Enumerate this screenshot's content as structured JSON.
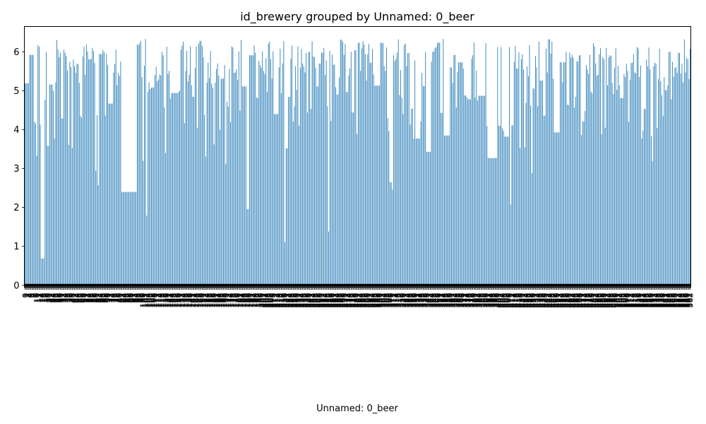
{
  "chart_data": {
    "type": "bar",
    "title": "id_brewery grouped by Unnamed: 0_beer",
    "xlabel": "Unnamed: 0_beer",
    "ylabel": "",
    "ylim": [
      -0.05,
      6.65
    ],
    "yticks": [
      0,
      1,
      2,
      3,
      4,
      5,
      6
    ],
    "bar_color": "#1f77b4",
    "x_tick_pattern": "one rotated label per bar, overlapping; labels are dense and illegible",
    "values": [
      5.19,
      5.19,
      5.19,
      5.19,
      5.92,
      5.92,
      5.92,
      5.92,
      4.2,
      4.16,
      3.33,
      6.17,
      6.13,
      4.13,
      0.69,
      0.69,
      0.69,
      4.76,
      5.99,
      3.58,
      3.58,
      5.16,
      5.16,
      5.16,
      5.0,
      3.77,
      5.22,
      6.3,
      6.06,
      5.86,
      5.98,
      4.29,
      4.29,
      6.05,
      5.98,
      5.89,
      5.52,
      3.61,
      5.74,
      5.61,
      3.53,
      5.8,
      5.63,
      5.46,
      5.69,
      5.69,
      5.2,
      4.35,
      4.31,
      5.88,
      6.13,
      5.41,
      6.19,
      6.01,
      5.81,
      5.81,
      5.81,
      6.1,
      6.02,
      5.71,
      2.94,
      4.37,
      2.57,
      5.94,
      5.94,
      5.94,
      6.05,
      5.99,
      4.36,
      5.94,
      5.66,
      4.67,
      4.67,
      4.67,
      4.67,
      5.47,
      5.69,
      6.05,
      5.14,
      5.45,
      5.38,
      5.75,
      2.4,
      2.4,
      2.4,
      2.4,
      2.4,
      2.4,
      2.4,
      2.4,
      2.4,
      2.4,
      2.4,
      2.4,
      2.4,
      6.19,
      6.17,
      6.22,
      6.28,
      5.35,
      3.2,
      5.64,
      6.33,
      1.79,
      4.97,
      5.22,
      5.04,
      5.08,
      5.08,
      5.09,
      5.4,
      5.61,
      5.24,
      5.29,
      5.42,
      5.39,
      6.0,
      5.91,
      4.57,
      3.4,
      6.13,
      5.43,
      5.51,
      4.8,
      4.94,
      4.94,
      4.94,
      4.94,
      4.94,
      4.94,
      4.96,
      5.0,
      6.05,
      6.16,
      6.26,
      4.17,
      5.51,
      6.03,
      5.24,
      5.41,
      6.14,
      5.14,
      4.85,
      4.84,
      5.58,
      6.14,
      4.05,
      6.21,
      6.28,
      6.28,
      6.15,
      5.86,
      4.38,
      3.31,
      5.21,
      5.72,
      5.32,
      6.02,
      5.18,
      5.08,
      3.62,
      5.21,
      5.56,
      5.7,
      5.39,
      4.0,
      5.31,
      5.31,
      5.31,
      5.66,
      3.12,
      4.72,
      4.59,
      5.56,
      4.19,
      6.14,
      6.11,
      5.46,
      5.47,
      5.55,
      5.27,
      6.01,
      4.49,
      6.3,
      5.11,
      5.11,
      5.11,
      5.11,
      1.96,
      1.96,
      5.91,
      5.91,
      5.91,
      5.91,
      6.16,
      5.97,
      4.83,
      4.81,
      5.77,
      5.66,
      5.59,
      6.01,
      5.51,
      5.43,
      5.84,
      4.97,
      6.21,
      6.26,
      5.81,
      5.31,
      6.01,
      4.4,
      4.4,
      4.4,
      4.4,
      5.6,
      6.08,
      4.94,
      5.7,
      6.28,
      1.11,
      3.52,
      3.52,
      4.84,
      4.84,
      5.82,
      6.16,
      4.21,
      4.6,
      5.63,
      5.02,
      6.14,
      4.1,
      5.59,
      6.07,
      5.7,
      5.62,
      5.47,
      5.97,
      4.44,
      5.99,
      6.0,
      4.53,
      6.27,
      5.88,
      5.86,
      5.59,
      5.11,
      5.11,
      5.7,
      5.7,
      5.98,
      5.98,
      6.1,
      5.4,
      5.78,
      4.6,
      1.38,
      6.02,
      4.22,
      5.93,
      5.67,
      5.67,
      5.09,
      4.9,
      4.9,
      5.34,
      6.31,
      6.31,
      6.26,
      5.92,
      6.2,
      4.97,
      4.97,
      5.39,
      5.57,
      6.0,
      4.44,
      4.44,
      6.04,
      6.04,
      3.89,
      6.22,
      6.24,
      5.51,
      6.09,
      6.27,
      6.19,
      5.94,
      5.26,
      5.94,
      6.2,
      5.72,
      5.72,
      6.07,
      5.42,
      5.13,
      5.13,
      5.13,
      5.13,
      5.13,
      6.23,
      6.23,
      6.23,
      5.64,
      5.51,
      6.11,
      4.3,
      3.96,
      2.65,
      2.65,
      2.46,
      5.91,
      5.76,
      5.82,
      5.98,
      6.32,
      4.89,
      5.53,
      4.81,
      4.4,
      6.18,
      6.21,
      5.63,
      5.97,
      5.97,
      4.13,
      4.54,
      4.54,
      3.77,
      5.78,
      3.77,
      3.77,
      3.77,
      3.77,
      4.21,
      5.46,
      5.12,
      5.12,
      6.0,
      3.43,
      3.43,
      3.43,
      3.43,
      5.75,
      6.0,
      6.01,
      6.09,
      6.12,
      6.23,
      6.23,
      6.24,
      4.43,
      4.43,
      6.33,
      3.85,
      3.85,
      3.85,
      3.85,
      3.85,
      5.6,
      5.6,
      5.2,
      5.92,
      5.92,
      4.57,
      5.48,
      5.73,
      5.73,
      5.73,
      5.73,
      5.57,
      4.88,
      4.88,
      4.83,
      4.78,
      4.78,
      4.78,
      5.82,
      5.91,
      6.24,
      4.82,
      5.52,
      4.75,
      4.87,
      4.87,
      4.87,
      4.87,
      4.87,
      4.87,
      6.22,
      4.09,
      3.27,
      3.27,
      3.27,
      3.27,
      3.27,
      3.27,
      3.27,
      3.27,
      6.12,
      4.1,
      4.1,
      6.12,
      4.03,
      3.97,
      3.82,
      3.82,
      3.82,
      3.82,
      6.12,
      2.08,
      4.11,
      4.11,
      5.74,
      6.15,
      5.57,
      5.57,
      5.99,
      3.53,
      5.81,
      5.93,
      5.54,
      3.55,
      4.69,
      5.62,
      5.37,
      6.17,
      4.61,
      2.88,
      5.07,
      5.05,
      5.89,
      5.6,
      4.6,
      6.26,
      5.26,
      5.26,
      5.26,
      4.36,
      4.36,
      6.08,
      5.47,
      6.32,
      6.32,
      5.95,
      6.26,
      5.31,
      3.93,
      3.93,
      3.93,
      3.93,
      3.93,
      5.73,
      5.73,
      5.22,
      5.73,
      5.73,
      6.0,
      4.64,
      4.63,
      5.98,
      5.85,
      5.92,
      5.85,
      4.56,
      4.84,
      5.75,
      5.75,
      5.91,
      5.91,
      3.86,
      4.21,
      4.21,
      4.48,
      5.66,
      5.55,
      5.43,
      5.92,
      4.98,
      4.93,
      6.22,
      6.14,
      5.7,
      5.38,
      5.41,
      5.94,
      6.09,
      3.88,
      5.86,
      5.81,
      4.05,
      6.1,
      5.14,
      5.86,
      5.91,
      5.89,
      5.2,
      4.91,
      5.58,
      6.09,
      5.02,
      5.64,
      5.14,
      4.81,
      4.81,
      4.81,
      5.43,
      5.35,
      5.69,
      5.51,
      4.2,
      5.28,
      5.71,
      5.72,
      5.94,
      5.47,
      5.45,
      6.12,
      6.09,
      5.35,
      5.65,
      3.77,
      3.98,
      4.53,
      4.53,
      5.8,
      5.63,
      6.11,
      5.55,
      3.83,
      3.19,
      5.63,
      5.72,
      5.69,
      4.04,
      5.3,
      6.08,
      5.24,
      4.88,
      4.35,
      5.35,
      5.02,
      5.01,
      5.14,
      6.0,
      6.0,
      4.78,
      5.74,
      5.36,
      5.58,
      5.61,
      5.46,
      5.98,
      5.97,
      5.44,
      5.69,
      5.21,
      6.32,
      5.47,
      5.84,
      5.81,
      5.3,
      6.08
    ]
  }
}
